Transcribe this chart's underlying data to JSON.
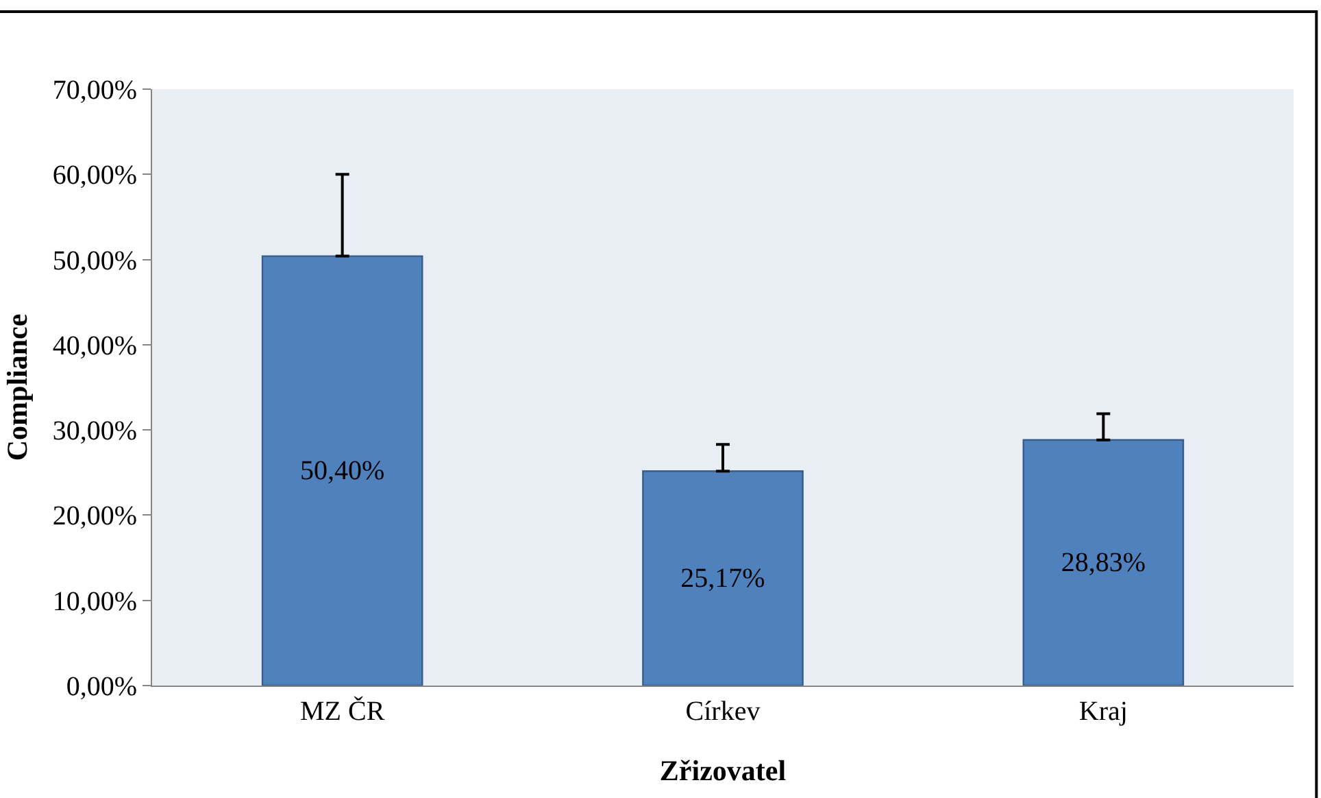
{
  "chart_data": {
    "type": "bar",
    "xlabel": "Zřizovatel",
    "ylabel": "Compliance",
    "categories": [
      "MZ ČR",
      "Církev",
      "Kraj"
    ],
    "values": [
      50.4,
      25.17,
      28.83
    ],
    "value_labels": [
      "50,40%",
      "25,17%",
      "28,83%"
    ],
    "errors": [
      [
        50.4,
        60.0
      ],
      [
        25.17,
        28.3
      ],
      [
        28.83,
        31.9
      ]
    ],
    "color": "#4f81bd",
    "ylim": [
      0,
      70
    ],
    "yticks": [
      {
        "value": 0,
        "label": "0,00%"
      },
      {
        "value": 10,
        "label": "10,00%"
      },
      {
        "value": 20,
        "label": "20,00%"
      },
      {
        "value": 30,
        "label": "30,00%"
      },
      {
        "value": 40,
        "label": "40,00%"
      },
      {
        "value": 50,
        "label": "50,00%"
      },
      {
        "value": 60,
        "label": "60,00%"
      },
      {
        "value": 70,
        "label": "70,00%"
      }
    ],
    "grid": false,
    "legend": false
  }
}
